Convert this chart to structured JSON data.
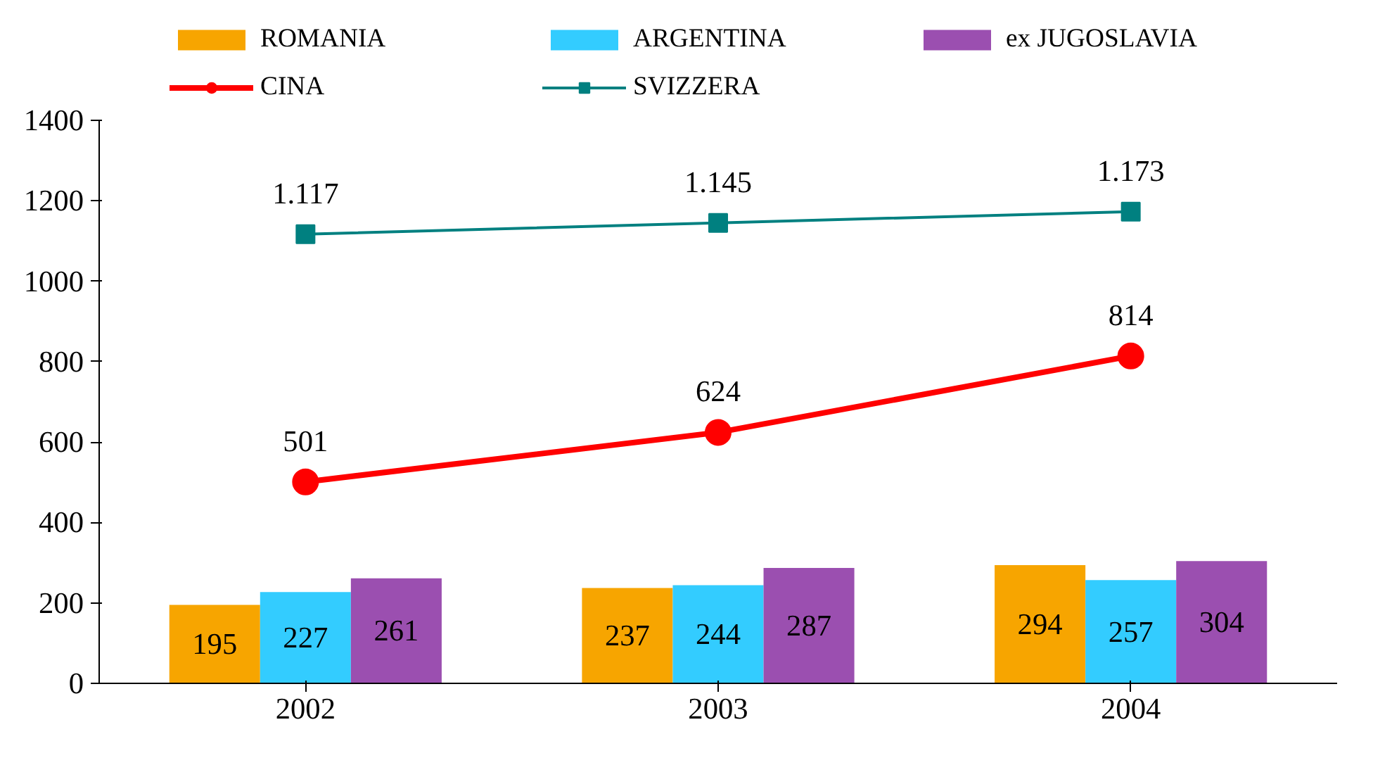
{
  "chart_data": {
    "type": "bar",
    "categories": [
      "2002",
      "2003",
      "2004"
    ],
    "ylim": [
      0,
      1400
    ],
    "yticks": [
      0,
      200,
      400,
      600,
      800,
      1000,
      1200,
      1400
    ],
    "grid": false,
    "legend": "top",
    "series": [
      {
        "name": "ROMANIA",
        "color": "#f7a500",
        "values": [
          195,
          237,
          294
        ],
        "value_labels": [
          "195",
          "237",
          "294"
        ]
      },
      {
        "name": "ARGENTINA",
        "color": "#33ccff",
        "values": [
          227,
          244,
          257
        ],
        "value_labels": [
          "227",
          "244",
          "257"
        ]
      },
      {
        "name": "ex JUGOSLAVIA",
        "color": "#9b4fb0",
        "values": [
          261,
          287,
          304
        ],
        "value_labels": [
          "261",
          "287",
          "304"
        ]
      },
      {
        "name": "CINA",
        "type": "line",
        "marker": "circle",
        "color": "#ff0000",
        "values": [
          501,
          624,
          814
        ],
        "value_labels": [
          "501",
          "624",
          "814"
        ]
      },
      {
        "name": "SVIZZERA",
        "type": "line",
        "marker": "square",
        "color": "#008080",
        "values": [
          1117,
          1145,
          1173
        ],
        "value_labels": [
          "1.117",
          "1.145",
          "1.173"
        ]
      }
    ]
  }
}
